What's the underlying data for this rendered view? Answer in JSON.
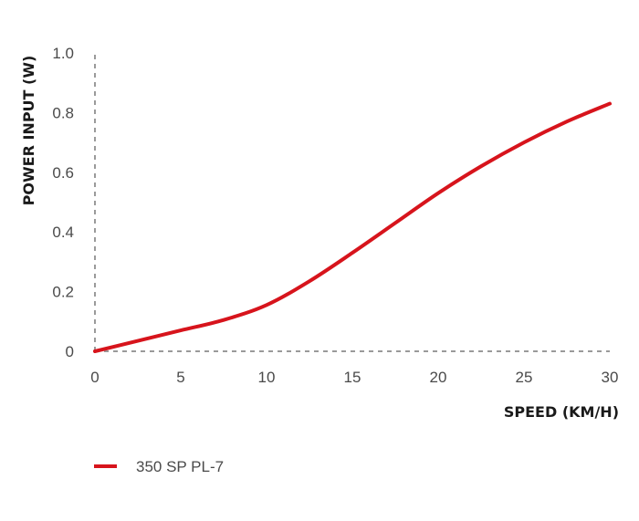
{
  "chart_data": {
    "type": "line",
    "xlabel": "SPEED (KM/H)",
    "ylabel": "POWER INPUT (W)",
    "xlim": [
      0,
      30
    ],
    "ylim": [
      0,
      1.0
    ],
    "x_ticks": [
      "0",
      "5",
      "10",
      "15",
      "20",
      "25",
      "30"
    ],
    "y_ticks": [
      "0",
      "0.2",
      "0.4",
      "0.6",
      "0.8",
      "1.0"
    ],
    "grid": false,
    "legend_position": "bottom-left",
    "series": [
      {
        "name": "350 SP PL-7",
        "color": "#d7141c",
        "x": [
          0,
          2.5,
          5,
          7.5,
          10,
          12.5,
          15,
          17.5,
          20,
          22.5,
          25,
          27.5,
          30
        ],
        "y": [
          0,
          0.035,
          0.07,
          0.105,
          0.155,
          0.235,
          0.33,
          0.43,
          0.53,
          0.62,
          0.7,
          0.77,
          0.83
        ]
      }
    ]
  }
}
